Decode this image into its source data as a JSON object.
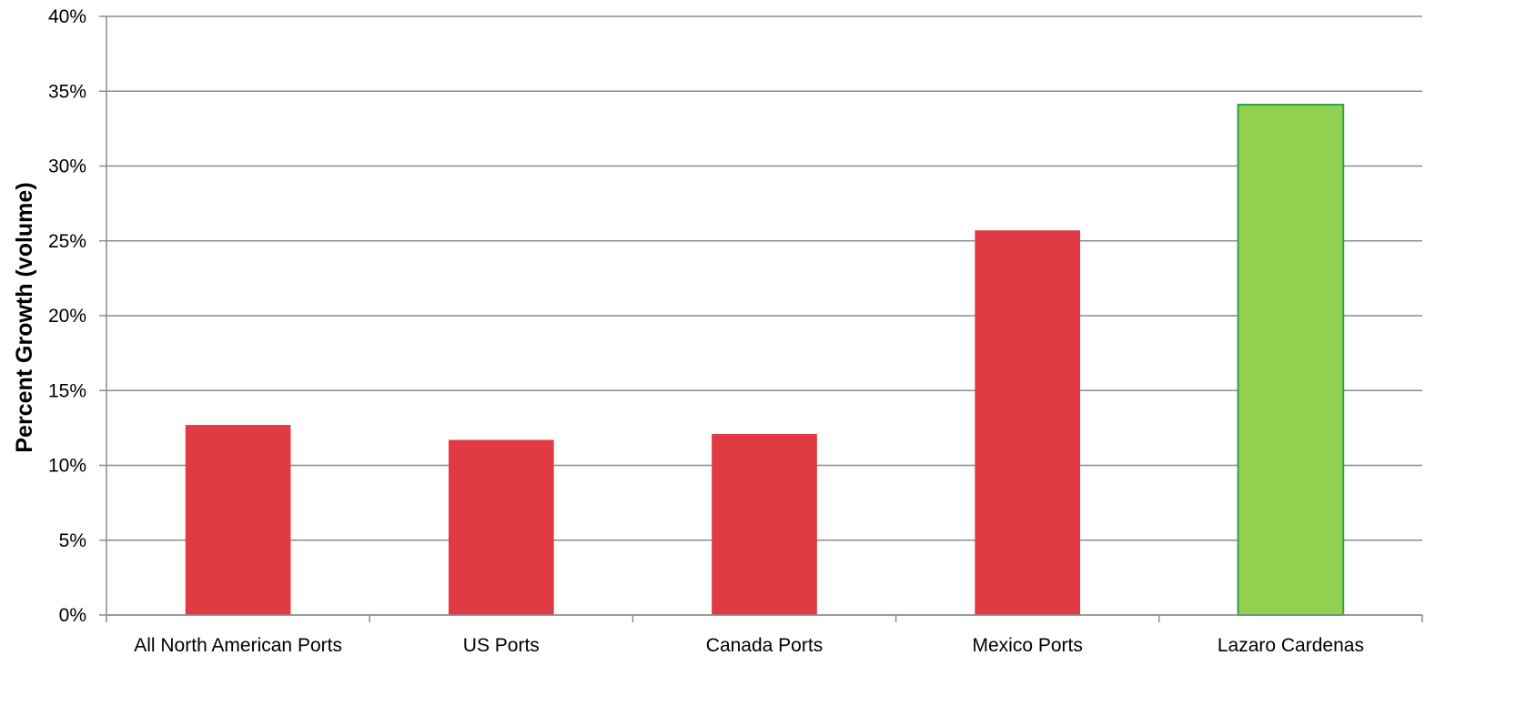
{
  "chart_data": {
    "type": "bar",
    "title": "",
    "xlabel": "",
    "ylabel": "Percent Growth (volume)",
    "ylim": [
      0,
      40
    ],
    "yticks": [
      "0%",
      "5%",
      "10%",
      "15%",
      "20%",
      "25%",
      "30%",
      "35%",
      "40%"
    ],
    "ytick_values": [
      0,
      5,
      10,
      15,
      20,
      25,
      30,
      35,
      40
    ],
    "categories": [
      "All North American Ports",
      "US Ports",
      "Canada Ports",
      "Mexico Ports",
      "Lazaro Cardenas"
    ],
    "values": [
      12.7,
      11.7,
      12.1,
      25.7,
      34.1
    ],
    "bar_colors": [
      "#e03a42",
      "#e03a42",
      "#e03a42",
      "#e03a42",
      "#92d050"
    ],
    "highlight_border": "#2ea34a",
    "grid": true,
    "legend": "none"
  }
}
